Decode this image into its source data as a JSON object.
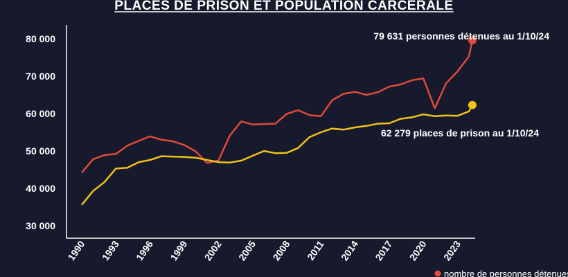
{
  "chart_data": {
    "type": "line",
    "title": "PLACES DE PRISON ET POPULATION CARCÉRALE",
    "xlabel": "",
    "ylabel": "",
    "xlim": [
      1990,
      2024
    ],
    "ylim": [
      30000,
      80000
    ],
    "yticks": [
      30000,
      40000,
      50000,
      60000,
      70000,
      80000
    ],
    "ytick_labels": [
      "30 000",
      "40 000",
      "50 000",
      "60 000",
      "70 000",
      "80 000"
    ],
    "xticks": [
      1990,
      1993,
      1996,
      1999,
      2002,
      2005,
      2008,
      2011,
      2014,
      2017,
      2020,
      2023
    ],
    "xtick_labels": [
      "1990",
      "1993",
      "1996",
      "1999",
      "2002",
      "2005",
      "2008",
      "2011",
      "2014",
      "2017",
      "2020",
      "2023"
    ],
    "grid": false,
    "series": [
      {
        "name": "nombre de personnes détenues",
        "color": "#e04a3a",
        "x": [
          1990,
          1991,
          1992,
          1993,
          1994,
          1995,
          1996,
          1997,
          1998,
          1999,
          2000,
          2001,
          2002,
          2003,
          2004,
          2005,
          2006,
          2007,
          2008,
          2009,
          2010,
          2011,
          2012,
          2013,
          2014,
          2015,
          2016,
          2017,
          2018,
          2019,
          2020,
          2021,
          2022,
          2023,
          2024
        ],
        "values": [
          44200,
          47800,
          48900,
          49200,
          51400,
          52700,
          53900,
          53000,
          52600,
          51600,
          49900,
          46800,
          47400,
          54100,
          57900,
          57100,
          57200,
          57300,
          59900,
          60900,
          59600,
          59300,
          63600,
          65300,
          65800,
          65000,
          65700,
          67200,
          67800,
          68900,
          69400,
          61400,
          68100,
          71300,
          75300
        ]
      },
      {
        "name": "places de prison",
        "color": "#f1c21b",
        "x": [
          1990,
          1991,
          1992,
          1993,
          1994,
          1995,
          1996,
          1997,
          1998,
          1999,
          2000,
          2001,
          2002,
          2003,
          2004,
          2005,
          2006,
          2007,
          2008,
          2009,
          2010,
          2011,
          2012,
          2013,
          2014,
          2015,
          2016,
          2017,
          2018,
          2019,
          2020,
          2021,
          2022,
          2023,
          2024
        ],
        "values": [
          35600,
          39300,
          41700,
          45300,
          45500,
          47000,
          47600,
          48600,
          48500,
          48400,
          48200,
          47600,
          47000,
          46900,
          47400,
          48700,
          50000,
          49400,
          49500,
          50800,
          53700,
          55000,
          56000,
          55700,
          56300,
          56700,
          57300,
          57400,
          58600,
          59000,
          59800,
          59300,
          59500,
          59400,
          60600
        ]
      }
    ],
    "endpoints": [
      {
        "series": "nombre de personnes détenues",
        "x": 2024.3,
        "value": 79631,
        "color": "#e04a3a"
      },
      {
        "series": "places de prison",
        "x": 2024.3,
        "value": 62279,
        "color": "#f1c21b"
      }
    ],
    "annotations": [
      {
        "text": "79 631 personnes détenues au 1/10/24"
      },
      {
        "text": "62 279 places de prison au 1/10/24"
      }
    ],
    "legend": {
      "position": "bottom-right",
      "text": "nombre de personnes détenues",
      "color": "#e04a3a"
    }
  }
}
